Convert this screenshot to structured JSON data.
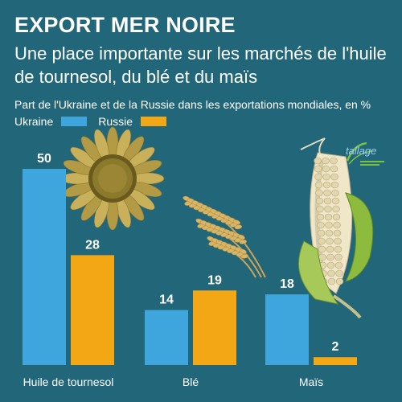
{
  "header": {
    "title": "EXPORT MER NOIRE",
    "subtitle": "Une place importante sur les marchés de l'huile de tournesol, du blé et du maïs",
    "caption": "Part de l'Ukraine et de la Russie dans les exportations mondiales, en %"
  },
  "logo": {
    "text": "tallage",
    "icon": "tallage-logo"
  },
  "chart_data": {
    "type": "bar",
    "title": "EXPORT MER NOIRE",
    "subtitle": "Une place importante sur les marchés de l'huile de tournesol, du blé et du maïs",
    "ylabel": "Part de l'Ukraine et de la Russie dans les exportations mondiales, en %",
    "categories": [
      "Huile de tournesol",
      "Blé",
      "Maïs"
    ],
    "series": [
      {
        "name": "Ukraine",
        "values": [
          50,
          14,
          18
        ],
        "color": "#3ea6dd"
      },
      {
        "name": "Russie",
        "values": [
          28,
          19,
          2
        ],
        "color": "#f3a714"
      }
    ],
    "ylim": [
      0,
      50
    ],
    "grid": false,
    "legend": "top-left",
    "data_labels": true
  },
  "illustrations": [
    "sunflower-icon",
    "wheat-icon",
    "corn-icon"
  ]
}
